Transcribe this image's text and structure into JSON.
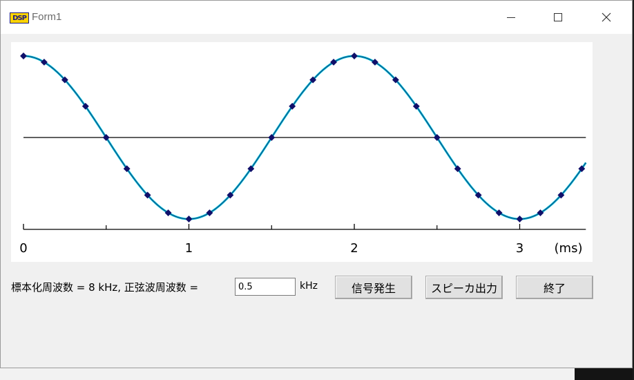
{
  "window": {
    "title": "Form1",
    "icon": "dsp-app-icon",
    "icon_text": "DSP"
  },
  "controls": {
    "label": "標本化周波数 = 8 kHz, 正弦波周波数 =",
    "freq_value": "0.5",
    "unit": "kHz",
    "generate_label": "信号発生",
    "speaker_label": "スピーカ出力",
    "exit_label": "終了"
  },
  "chart_data": {
    "type": "line",
    "xlabel": "(ms)",
    "ylabel": "",
    "title": "",
    "xlim": [
      0,
      3.4
    ],
    "ylim": [
      -1,
      1
    ],
    "x_ticks": [
      0,
      1,
      2,
      3
    ],
    "x_minor_ticks": [
      0.5,
      1.5,
      2.5
    ],
    "colors": {
      "curve": "#00c0d8",
      "points": "#10106a",
      "axis": "#000000"
    },
    "series": [
      {
        "frequency_khz": 0.5,
        "sample_interval_ms": 0.125,
        "points_x": [
          0,
          0.125,
          0.25,
          0.375,
          0.5,
          0.625,
          0.75,
          0.875,
          1,
          1.125,
          1.25,
          1.375,
          1.5,
          1.625,
          1.75,
          1.875,
          2,
          2.125,
          2.25,
          2.375,
          2.5,
          2.625,
          2.75,
          2.875,
          3,
          3.125,
          3.25,
          3.375
        ],
        "points_y": [
          1,
          0.924,
          0.707,
          0.383,
          0,
          -0.383,
          -0.707,
          -0.924,
          -1,
          -0.924,
          -0.707,
          -0.383,
          0,
          0.383,
          0.707,
          0.924,
          1,
          0.924,
          0.707,
          0.383,
          0,
          -0.383,
          -0.707,
          -0.924,
          -1,
          -0.924,
          -0.707,
          -0.383
        ]
      }
    ]
  }
}
